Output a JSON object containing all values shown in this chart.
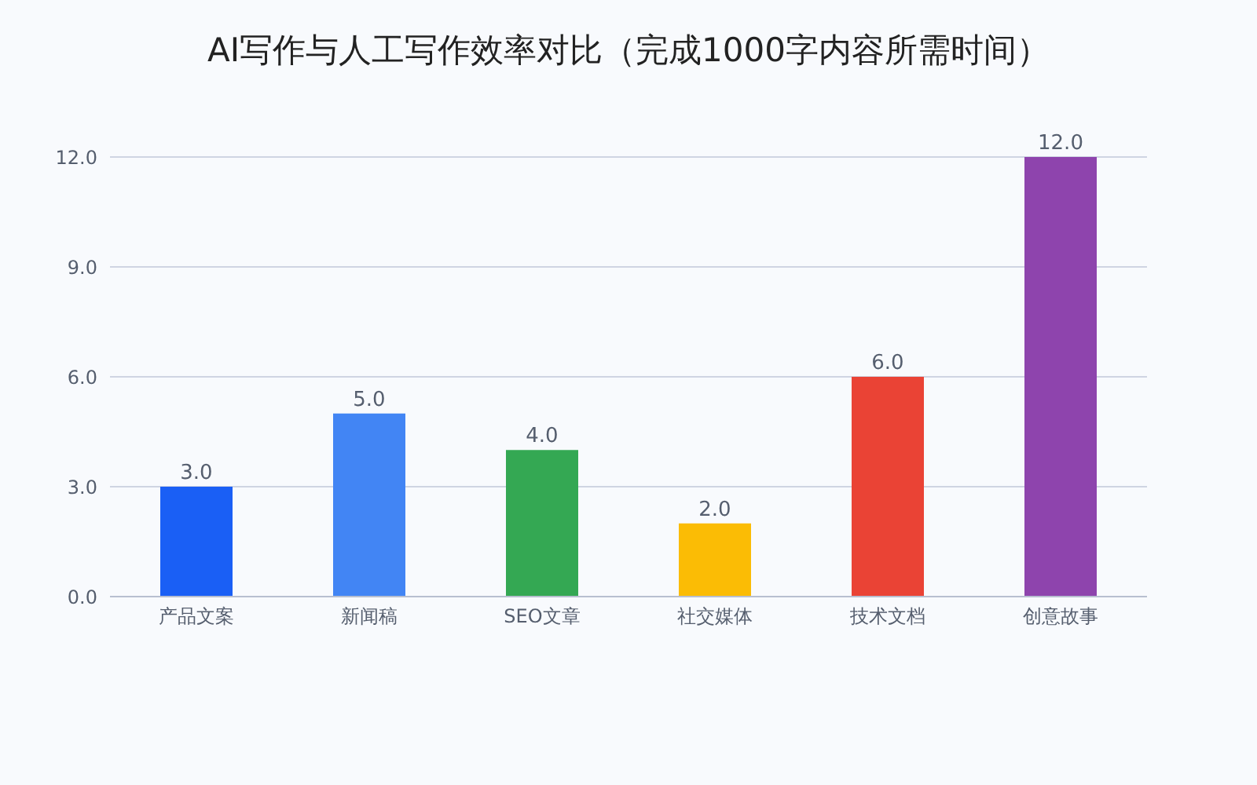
{
  "chart_data": {
    "type": "bar",
    "title": "AI写作与人工写作效率对比（完成1000字内容所需时间）",
    "categories": [
      "产品文案",
      "新闻稿",
      "SEO文章",
      "社交媒体",
      "技术文档",
      "创意故事"
    ],
    "values": [
      3,
      5,
      4,
      2,
      6,
      12
    ],
    "colors": [
      "#1a5ff5",
      "#4285f4",
      "#34a853",
      "#fbbc05",
      "#ea4335",
      "#8e44ad"
    ],
    "value_labels": [
      "3.0",
      "5.0",
      "4.0",
      "2.0",
      "6.0",
      "12.0"
    ],
    "ylim": [
      0,
      12
    ],
    "yticks": [
      {
        "value": 0,
        "label": "0.0"
      },
      {
        "value": 3,
        "label": "3.0"
      },
      {
        "value": 6,
        "label": "6.0"
      },
      {
        "value": 9,
        "label": "9.0"
      },
      {
        "value": 12,
        "label": "12.0"
      }
    ],
    "grid": "y",
    "legend": false
  }
}
